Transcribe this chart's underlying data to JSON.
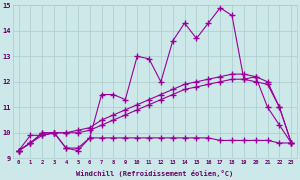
{
  "x": [
    0,
    1,
    2,
    3,
    4,
    5,
    6,
    7,
    8,
    9,
    10,
    11,
    12,
    13,
    14,
    15,
    16,
    17,
    18,
    19,
    20,
    21,
    22,
    23
  ],
  "line_jagged": [
    9.3,
    9.6,
    9.9,
    10.0,
    9.4,
    9.4,
    9.8,
    11.5,
    11.5,
    11.3,
    13.0,
    12.9,
    12.0,
    13.6,
    14.3,
    13.7,
    14.3,
    14.9,
    14.6,
    12.1,
    12.2,
    11.0,
    10.3,
    9.6
  ],
  "line_upper": [
    9.3,
    9.6,
    10.0,
    10.0,
    10.0,
    10.1,
    10.2,
    10.5,
    10.7,
    10.9,
    11.1,
    11.3,
    11.5,
    11.7,
    11.9,
    12.0,
    12.1,
    12.2,
    12.3,
    12.3,
    12.2,
    12.0,
    11.0,
    9.6
  ],
  "line_mid": [
    9.3,
    9.6,
    10.0,
    10.0,
    10.0,
    10.0,
    10.1,
    10.3,
    10.5,
    10.7,
    10.9,
    11.1,
    11.3,
    11.5,
    11.7,
    11.8,
    11.9,
    12.0,
    12.1,
    12.1,
    12.0,
    11.9,
    11.0,
    9.6
  ],
  "line_flat": [
    9.3,
    9.9,
    9.9,
    10.0,
    9.4,
    9.3,
    9.8,
    9.8,
    9.8,
    9.8,
    9.8,
    9.8,
    9.8,
    9.8,
    9.8,
    9.8,
    9.8,
    9.7,
    9.7,
    9.7,
    9.7,
    9.7,
    9.6,
    9.6
  ],
  "bgcolor": "#cce8e8",
  "line_color": "#990099",
  "xlim": [
    0,
    23
  ],
  "ylim": [
    9.0,
    15.0
  ],
  "xlabel": "Windchill (Refroidissement éolien,°C)",
  "grid_color": "#aacccc",
  "tick_color": "#660066",
  "xticks": [
    0,
    1,
    2,
    3,
    4,
    5,
    6,
    7,
    8,
    9,
    10,
    11,
    12,
    13,
    14,
    15,
    16,
    17,
    18,
    19,
    20,
    21,
    22,
    23
  ],
  "yticks": [
    9,
    10,
    11,
    12,
    13,
    14,
    15
  ]
}
